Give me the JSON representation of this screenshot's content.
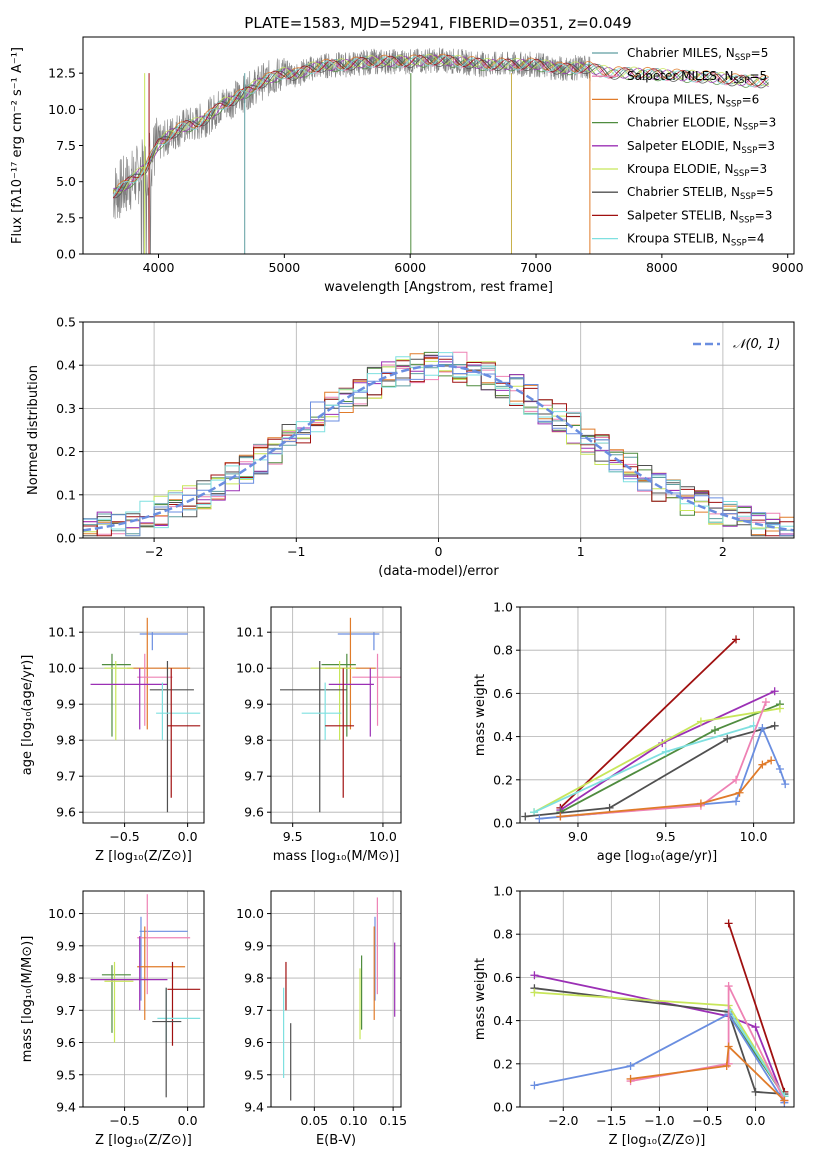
{
  "title": "PLATE=1583, MJD=52941, FIBERID=0351, z=0.049",
  "colors": {
    "chabrier_miles": "#5f9ea0",
    "salpeter_miles": "#ee82b4",
    "kroupa_miles": "#e07b2a",
    "chabrier_elodie": "#4f8c3f",
    "salpeter_elodie": "#9b30b5",
    "kroupa_elodie": "#c8e65a",
    "chabrier_stelib": "#505050",
    "salpeter_stelib": "#a01010",
    "kroupa_stelib": "#7fe0e0",
    "blue_model": "#6a8ee0",
    "data": "#808080",
    "grid": "#b0b0b0"
  },
  "chart_data": [
    {
      "type": "line",
      "id": "spectrum",
      "xlabel": "wavelength [Angstrom, rest frame]",
      "ylabel": "Flux [fλ10⁻¹⁷ erg cm⁻² s⁻¹ A⁻¹]",
      "xlim": [
        3400,
        9050
      ],
      "ylim": [
        0,
        15
      ],
      "xticks": [
        "4000",
        "5000",
        "6000",
        "7000",
        "8000",
        "9000"
      ],
      "yticks": [
        "0.0",
        "2.5",
        "5.0",
        "7.5",
        "10.0",
        "12.5"
      ],
      "legend_position": "right",
      "series": [
        {
          "name": "Chabrier MILES, N",
          "sub": "SSP",
          "suffix": "=5",
          "color": "#5f9ea0"
        },
        {
          "name": "Salpeter MILES, N",
          "sub": "SSP",
          "suffix": "=5",
          "color": "#ee82b4"
        },
        {
          "name": "Kroupa MILES, N",
          "sub": "SSP",
          "suffix": "=6",
          "color": "#e07b2a"
        },
        {
          "name": "Chabrier ELODIE, N",
          "sub": "SSP",
          "suffix": "=3",
          "color": "#4f8c3f"
        },
        {
          "name": "Salpeter ELODIE, N",
          "sub": "SSP",
          "suffix": "=3",
          "color": "#9b30b5"
        },
        {
          "name": "Kroupa ELODIE, N",
          "sub": "SSP",
          "suffix": "=3",
          "color": "#c8e65a"
        },
        {
          "name": "Chabrier STELIB, N",
          "sub": "SSP",
          "suffix": "=5",
          "color": "#505050"
        },
        {
          "name": "Salpeter STELIB, N",
          "sub": "SSP",
          "suffix": "=3",
          "color": "#a01010"
        },
        {
          "name": "Kroupa STELIB, N",
          "sub": "SSP",
          "suffix": "=4",
          "color": "#7fe0e0"
        }
      ],
      "continuum": [
        [
          3640,
          4.2
        ],
        [
          3700,
          4.5
        ],
        [
          3800,
          5.2
        ],
        [
          3900,
          6.0
        ],
        [
          4000,
          7.6
        ],
        [
          4100,
          8.3
        ],
        [
          4200,
          8.8
        ],
        [
          4300,
          9.0
        ],
        [
          4400,
          9.5
        ],
        [
          4500,
          10.3
        ],
        [
          4600,
          10.7
        ],
        [
          4700,
          11.2
        ],
        [
          4800,
          11.8
        ],
        [
          4900,
          12.2
        ],
        [
          5000,
          12.5
        ],
        [
          5100,
          12.4
        ],
        [
          5200,
          12.8
        ],
        [
          5300,
          13.0
        ],
        [
          5500,
          13.1
        ],
        [
          5700,
          13.3
        ],
        [
          6000,
          13.3
        ],
        [
          6200,
          13.4
        ],
        [
          6400,
          13.3
        ],
        [
          6600,
          13.1
        ],
        [
          6800,
          13.1
        ],
        [
          7000,
          13.1
        ],
        [
          7200,
          12.8
        ],
        [
          7400,
          12.9
        ],
        [
          7600,
          12.5
        ],
        [
          7800,
          12.5
        ],
        [
          8000,
          12.4
        ],
        [
          8200,
          12.3
        ],
        [
          8400,
          12.2
        ],
        [
          8600,
          12.0
        ],
        [
          8800,
          11.9
        ]
      ],
      "data_range": [
        3640,
        7430
      ]
    },
    {
      "type": "bar",
      "id": "residual_histograms",
      "xlabel": "(data-model)/error",
      "ylabel": "Normed distribution",
      "xlim": [
        -2.5,
        2.5
      ],
      "ylim": [
        0,
        0.5
      ],
      "xticks": [
        "−2",
        "−1",
        "0",
        "1",
        "2"
      ],
      "yticks": [
        "0.0",
        "0.1",
        "0.2",
        "0.3",
        "0.4",
        "0.5"
      ],
      "legend": "𝒩(0, 1)",
      "bin_width": 0.1,
      "bin_start": -2.5,
      "reference_curve": "normal(0,1)"
    },
    {
      "type": "scatter",
      "id": "age_vs_Z",
      "xlabel": "Z [log₁₀(Z/Z⊙)]",
      "ylabel": "age  [log₁₀(age/yr)]",
      "xlim": [
        -0.83,
        0.13
      ],
      "ylim": [
        9.57,
        10.17
      ],
      "xticks": [
        "−0.5",
        "0.0"
      ],
      "yticks": [
        "9.6",
        "9.7",
        "9.8",
        "9.9",
        "10.0",
        "10.1"
      ],
      "points": [
        {
          "c": "#6a8ee0",
          "x": -0.28,
          "y": 10.095,
          "xe": [
            -0.38,
            0.0
          ],
          "ye": [
            10.05,
            10.1
          ]
        },
        {
          "c": "#e07b2a",
          "x": -0.32,
          "y": 10.0,
          "xe": [
            -0.48,
            0.02
          ],
          "ye": [
            9.83,
            10.14
          ]
        },
        {
          "c": "#ee82b4",
          "x": -0.34,
          "y": 9.975,
          "xe": [
            -0.4,
            -0.12
          ],
          "ye": [
            9.84,
            10.04
          ]
        },
        {
          "c": "#4f8c3f",
          "x": -0.6,
          "y": 10.01,
          "xe": [
            -0.68,
            -0.45
          ],
          "ye": [
            9.81,
            10.04
          ]
        },
        {
          "c": "#c8e65a",
          "x": -0.57,
          "y": 10.0,
          "xe": [
            -0.66,
            -0.43
          ],
          "ye": [
            9.8,
            10.02
          ]
        },
        {
          "c": "#9b30b5",
          "x": -0.38,
          "y": 9.955,
          "xe": [
            -0.77,
            -0.16
          ],
          "ye": [
            9.83,
            10.0
          ]
        },
        {
          "c": "#505050",
          "x": -0.16,
          "y": 9.94,
          "xe": [
            -0.3,
            0.05
          ],
          "ye": [
            9.6,
            10.02
          ]
        },
        {
          "c": "#7fe0e0",
          "x": -0.2,
          "y": 9.875,
          "xe": [
            -0.25,
            0.1
          ],
          "ye": [
            9.8,
            9.96
          ]
        },
        {
          "c": "#a01010",
          "x": -0.13,
          "y": 9.84,
          "xe": [
            -0.16,
            0.1
          ],
          "ye": [
            9.64,
            10.0
          ]
        }
      ]
    },
    {
      "type": "scatter",
      "id": "age_vs_mass",
      "xlabel": "mass [log₁₀(M/M⊙)]",
      "ylabel": "",
      "xlim": [
        9.38,
        10.1
      ],
      "ylim": [
        9.57,
        10.17
      ],
      "xticks": [
        "9.5",
        "10.0"
      ],
      "yticks": [
        "9.6",
        "9.7",
        "9.8",
        "9.9",
        "10.0",
        "10.1"
      ],
      "points": [
        {
          "c": "#6a8ee0",
          "x": 9.95,
          "y": 10.095,
          "xe": [
            9.75,
            9.98
          ],
          "ye": [
            10.05,
            10.1
          ]
        },
        {
          "c": "#e07b2a",
          "x": 9.82,
          "y": 10.0,
          "xe": [
            9.68,
            9.96
          ],
          "ye": [
            9.83,
            10.14
          ]
        },
        {
          "c": "#ee82b4",
          "x": 9.97,
          "y": 9.975,
          "xe": [
            9.83,
            10.1
          ],
          "ye": [
            9.84,
            10.04
          ]
        },
        {
          "c": "#4f8c3f",
          "x": 9.8,
          "y": 10.01,
          "xe": [
            9.66,
            9.85
          ],
          "ye": [
            9.81,
            10.04
          ]
        },
        {
          "c": "#c8e65a",
          "x": 9.76,
          "y": 10.0,
          "xe": [
            9.6,
            9.85
          ],
          "ye": [
            9.8,
            10.02
          ]
        },
        {
          "c": "#9b30b5",
          "x": 9.93,
          "y": 9.955,
          "xe": [
            9.7,
            9.95
          ],
          "ye": [
            9.81,
            10.0
          ]
        },
        {
          "c": "#505050",
          "x": 9.65,
          "y": 9.94,
          "xe": [
            9.43,
            9.8
          ],
          "ye": [
            9.6,
            10.02
          ]
        },
        {
          "c": "#7fe0e0",
          "x": 9.68,
          "y": 9.875,
          "xe": [
            9.55,
            9.77
          ],
          "ye": [
            9.8,
            9.96
          ]
        },
        {
          "c": "#a01010",
          "x": 9.78,
          "y": 9.84,
          "xe": [
            9.68,
            9.84
          ],
          "ye": [
            9.64,
            10.0
          ]
        }
      ]
    },
    {
      "type": "line",
      "id": "mass_weight_vs_age",
      "xlabel": "age  [log₁₀(age/yr)]",
      "ylabel": "mass weight",
      "xlim": [
        8.67,
        10.23
      ],
      "ylim": [
        0,
        1.0
      ],
      "xticks": [
        "9.0",
        "9.5",
        "10.0"
      ],
      "yticks": [
        "0.0",
        "0.2",
        "0.4",
        "0.6",
        "0.8",
        "1.0"
      ],
      "series": [
        {
          "c": "#a01010",
          "x": [
            8.9,
            9.9
          ],
          "y": [
            0.07,
            0.85
          ]
        },
        {
          "c": "#9b30b5",
          "x": [
            8.9,
            9.48,
            10.12
          ],
          "y": [
            0.06,
            0.37,
            0.61
          ]
        },
        {
          "c": "#4f8c3f",
          "x": [
            8.9,
            9.78,
            10.15
          ],
          "y": [
            0.05,
            0.43,
            0.55
          ]
        },
        {
          "c": "#c8e65a",
          "x": [
            8.75,
            9.7,
            10.15
          ],
          "y": [
            0.05,
            0.47,
            0.53
          ]
        },
        {
          "c": "#7fe0e0",
          "x": [
            8.75,
            9.5,
            10.0
          ],
          "y": [
            0.05,
            0.33,
            0.45
          ]
        },
        {
          "c": "#505050",
          "x": [
            8.7,
            9.18,
            9.85,
            10.12
          ],
          "y": [
            0.03,
            0.07,
            0.39,
            0.45
          ]
        },
        {
          "c": "#6a8ee0",
          "x": [
            8.78,
            9.9,
            10.05,
            10.15,
            10.18
          ],
          "y": [
            0.02,
            0.1,
            0.44,
            0.25,
            0.18
          ]
        },
        {
          "c": "#ee82b4",
          "x": [
            8.9,
            9.7,
            9.9,
            10.07
          ],
          "y": [
            0.03,
            0.08,
            0.2,
            0.56
          ]
        },
        {
          "c": "#e07b2a",
          "x": [
            8.9,
            9.7,
            9.92,
            10.05,
            10.1
          ],
          "y": [
            0.03,
            0.09,
            0.14,
            0.27,
            0.29
          ]
        }
      ]
    },
    {
      "type": "scatter",
      "id": "mass_vs_Z",
      "xlabel": "Z [log₁₀(Z/Z⊙)]",
      "ylabel": "mass [log₁₀(M/M⊙)]",
      "xlim": [
        -0.83,
        0.13
      ],
      "ylim": [
        9.4,
        10.07
      ],
      "xticks": [
        "−0.5",
        "0.0"
      ],
      "yticks": [
        "9.4",
        "9.5",
        "9.6",
        "9.7",
        "9.8",
        "9.9",
        "10.0"
      ],
      "points": [
        {
          "c": "#6a8ee0",
          "x": -0.37,
          "y": 9.945,
          "xe": [
            -0.38,
            0.0
          ],
          "ye": [
            9.73,
            9.99
          ]
        },
        {
          "c": "#ee82b4",
          "x": -0.32,
          "y": 9.925,
          "xe": [
            -0.4,
            0.02
          ],
          "ye": [
            9.75,
            10.06
          ]
        },
        {
          "c": "#e07b2a",
          "x": -0.34,
          "y": 9.835,
          "xe": [
            -0.4,
            -0.02
          ],
          "ye": [
            9.67,
            9.96
          ]
        },
        {
          "c": "#4f8c3f",
          "x": -0.6,
          "y": 9.81,
          "xe": [
            -0.68,
            -0.45
          ],
          "ye": [
            9.63,
            9.84
          ]
        },
        {
          "c": "#c8e65a",
          "x": -0.58,
          "y": 9.79,
          "xe": [
            -0.66,
            -0.43
          ],
          "ye": [
            9.6,
            9.85
          ]
        },
        {
          "c": "#9b30b5",
          "x": -0.38,
          "y": 9.795,
          "xe": [
            -0.77,
            -0.16
          ],
          "ye": [
            9.7,
            9.93
          ]
        },
        {
          "c": "#a01010",
          "x": -0.12,
          "y": 9.765,
          "xe": [
            -0.16,
            0.1
          ],
          "ye": [
            9.59,
            9.85
          ]
        },
        {
          "c": "#7fe0e0",
          "x": -0.17,
          "y": 9.675,
          "xe": [
            -0.24,
            0.1
          ],
          "ye": [
            9.6,
            9.77
          ]
        },
        {
          "c": "#505050",
          "x": -0.17,
          "y": 9.665,
          "xe": [
            -0.28,
            -0.05
          ],
          "ye": [
            9.43,
            9.77
          ]
        }
      ]
    },
    {
      "type": "scatter",
      "id": "mass_vs_EBV",
      "xlabel": "E(B-V)",
      "ylabel": "",
      "xlim": [
        -0.005,
        0.16
      ],
      "ylim": [
        9.4,
        10.07
      ],
      "xticks": [
        "0.05",
        "0.10",
        "0.15"
      ],
      "yticks": [
        "9.4",
        "9.5",
        "9.6",
        "9.7",
        "9.8",
        "9.9",
        "10.0"
      ],
      "points": [
        {
          "c": "#ee82b4",
          "x": 0.13,
          "ye": [
            9.75,
            10.05
          ]
        },
        {
          "c": "#6a8ee0",
          "x": 0.127,
          "ye": [
            9.73,
            9.99
          ]
        },
        {
          "c": "#e07b2a",
          "x": 0.126,
          "ye": [
            9.67,
            9.96
          ]
        },
        {
          "c": "#9b30b5",
          "x": 0.152,
          "ye": [
            9.68,
            9.91
          ]
        },
        {
          "c": "#4f8c3f",
          "x": 0.11,
          "ye": [
            9.64,
            9.87
          ]
        },
        {
          "c": "#c8e65a",
          "x": 0.108,
          "ye": [
            9.61,
            9.83
          ]
        },
        {
          "c": "#a01010",
          "x": 0.014,
          "ye": [
            9.7,
            9.85
          ]
        },
        {
          "c": "#7fe0e0",
          "x": 0.011,
          "ye": [
            9.49,
            9.77
          ]
        },
        {
          "c": "#505050",
          "x": 0.02,
          "ye": [
            9.42,
            9.66
          ]
        }
      ]
    },
    {
      "type": "line",
      "id": "mass_weight_vs_Z",
      "xlabel": "Z [log₁₀(Z/Z⊙)]",
      "ylabel": "mass weight",
      "xlim": [
        -2.45,
        0.4
      ],
      "ylim": [
        0,
        1.0
      ],
      "xticks": [
        "−2.0",
        "−1.5",
        "−1.0",
        "−0.5",
        "0.0"
      ],
      "yticks": [
        "0.0",
        "0.2",
        "0.4",
        "0.6",
        "0.8",
        "1.0"
      ],
      "series": [
        {
          "c": "#a01010",
          "x": [
            -0.28,
            0.3
          ],
          "y": [
            0.85,
            0.07
          ]
        },
        {
          "c": "#9b30b5",
          "x": [
            -2.3,
            -0.28,
            0.0,
            0.3
          ],
          "y": [
            0.61,
            0.42,
            0.37,
            0.03
          ]
        },
        {
          "c": "#505050",
          "x": [
            -2.3,
            -0.28,
            0.0,
            0.3
          ],
          "y": [
            0.55,
            0.44,
            0.07,
            0.06
          ]
        },
        {
          "c": "#c8e65a",
          "x": [
            -2.3,
            -0.28,
            0.3
          ],
          "y": [
            0.53,
            0.47,
            0.05
          ]
        },
        {
          "c": "#4f8c3f",
          "x": [
            -0.28,
            0.3
          ],
          "y": [
            0.43,
            0.05
          ]
        },
        {
          "c": "#7fe0e0",
          "x": [
            -0.28,
            0.3
          ],
          "y": [
            0.45,
            0.05
          ]
        },
        {
          "c": "#6a8ee0",
          "x": [
            -2.3,
            -1.3,
            -0.28,
            0.3
          ],
          "y": [
            0.1,
            0.19,
            0.43,
            0.02
          ]
        },
        {
          "c": "#ee82b4",
          "x": [
            -1.3,
            -0.28,
            -0.28,
            0.3
          ],
          "y": [
            0.12,
            0.2,
            0.56,
            0.03
          ]
        },
        {
          "c": "#e07b2a",
          "x": [
            -1.3,
            -0.3,
            -0.28,
            0.3
          ],
          "y": [
            0.13,
            0.19,
            0.28,
            0.03
          ]
        }
      ]
    }
  ]
}
